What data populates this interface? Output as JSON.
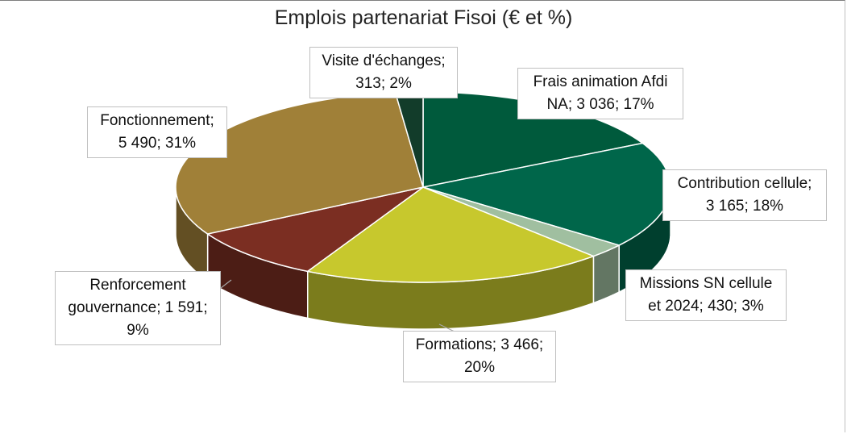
{
  "chart_data": {
    "type": "pie",
    "title": "Emplois partenariat Fisoi (€ et %)",
    "slices": [
      {
        "name": "Frais animation Afdi NA",
        "value": 3036,
        "percent": 17,
        "color": "#005A3C",
        "label_lines": [
          "Frais animation Afdi",
          "NA; 3 036; 17%"
        ]
      },
      {
        "name": "Contribution cellule",
        "value": 3165,
        "percent": 18,
        "color": "#00664A",
        "label_lines": [
          "Contribution cellule;",
          "3 165; 18%"
        ]
      },
      {
        "name": "Missions SN cellule et 2024",
        "value": 430,
        "percent": 3,
        "color": "#A0BFA0",
        "label_lines": [
          "Missions SN cellule",
          "et 2024; 430; 3%"
        ]
      },
      {
        "name": "Formations",
        "value": 3466,
        "percent": 20,
        "color": "#C7C82D",
        "label_lines": [
          "Formations; 3 466;",
          "20%"
        ]
      },
      {
        "name": "Renforcement gouvernance",
        "value": 1591,
        "percent": 9,
        "color": "#7B2E22",
        "label_lines": [
          "Renforcement",
          "gouvernance; 1 591;",
          "9%"
        ]
      },
      {
        "name": "Fonctionnement",
        "value": 5490,
        "percent": 31,
        "color": "#A08038",
        "label_lines": [
          "Fonctionnement;",
          "5 490; 31%"
        ]
      },
      {
        "name": "Visite d'échanges",
        "value": 313,
        "percent": 2,
        "color": "#123C2A",
        "label_lines": [
          "Visite d'échanges;",
          "313; 2%"
        ]
      }
    ]
  }
}
